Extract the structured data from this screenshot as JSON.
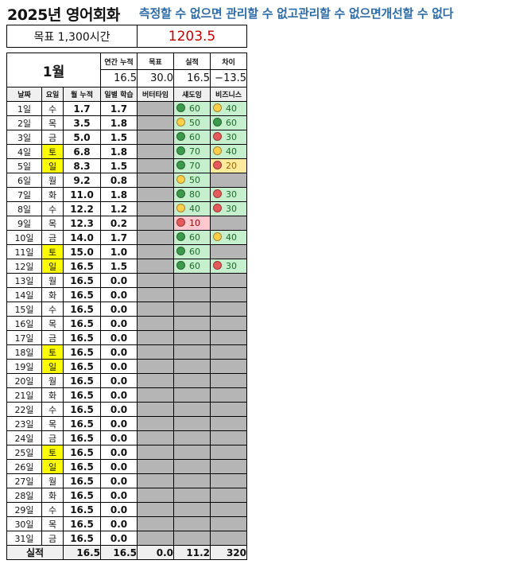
{
  "title": "2025년 영어회화",
  "motto": "측정할 수 없으면 관리할 수 없고관리할 수 없으면개선할 수 없다",
  "goal": {
    "label": "목표 1,300시간",
    "value": "1203.5"
  },
  "month": "1월",
  "summary": {
    "headers": [
      "연간 누적",
      "목표",
      "실적",
      "차이"
    ],
    "values": [
      "16.5",
      "30.0",
      "16.5",
      "−13.5"
    ]
  },
  "columns": [
    "날짜",
    "요일",
    "월 누적",
    "일별 학습",
    "버터타임",
    "섀도잉",
    "비즈니스"
  ],
  "colors": {
    "green_dot": "#3c9a4c",
    "yellow_dot": "#ffcf4a",
    "red_dot": "#e65a5a",
    "weekend": "#ffff00",
    "empty": "#b5b5b5"
  },
  "rows": [
    {
      "date": "1일",
      "day": "수",
      "cum": "1.7",
      "daily": "1.7",
      "shadow": {
        "v": "60",
        "s": "green"
      },
      "biz": {
        "v": "40",
        "s": "yellow"
      }
    },
    {
      "date": "2일",
      "day": "목",
      "cum": "3.5",
      "daily": "1.8",
      "shadow": {
        "v": "50",
        "s": "yellow"
      },
      "biz": {
        "v": "60",
        "s": "green"
      }
    },
    {
      "date": "3일",
      "day": "금",
      "cum": "5.0",
      "daily": "1.5",
      "shadow": {
        "v": "60",
        "s": "green"
      },
      "biz": {
        "v": "30",
        "s": "red"
      }
    },
    {
      "date": "4일",
      "day": "토",
      "cum": "6.8",
      "daily": "1.8",
      "shadow": {
        "v": "70",
        "s": "green"
      },
      "biz": {
        "v": "40",
        "s": "yellow"
      }
    },
    {
      "date": "5일",
      "day": "일",
      "cum": "8.3",
      "daily": "1.5",
      "shadow": {
        "v": "70",
        "s": "green"
      },
      "biz": {
        "v": "20",
        "s": "red",
        "bg": "y"
      }
    },
    {
      "date": "6일",
      "day": "월",
      "cum": "9.2",
      "daily": "0.8",
      "shadow": {
        "v": "50",
        "s": "yellow"
      },
      "biz": null
    },
    {
      "date": "7일",
      "day": "화",
      "cum": "11.0",
      "daily": "1.8",
      "shadow": {
        "v": "80",
        "s": "green"
      },
      "biz": {
        "v": "30",
        "s": "red"
      }
    },
    {
      "date": "8일",
      "day": "수",
      "cum": "12.2",
      "daily": "1.2",
      "shadow": {
        "v": "40",
        "s": "yellow"
      },
      "biz": {
        "v": "30",
        "s": "red"
      }
    },
    {
      "date": "9일",
      "day": "목",
      "cum": "12.3",
      "daily": "0.2",
      "shadow": {
        "v": "10",
        "s": "red",
        "bg": "p"
      },
      "biz": null
    },
    {
      "date": "10일",
      "day": "금",
      "cum": "14.0",
      "daily": "1.7",
      "shadow": {
        "v": "60",
        "s": "green"
      },
      "biz": {
        "v": "40",
        "s": "yellow"
      }
    },
    {
      "date": "11일",
      "day": "토",
      "cum": "15.0",
      "daily": "1.0",
      "shadow": {
        "v": "60",
        "s": "green"
      },
      "biz": null
    },
    {
      "date": "12일",
      "day": "일",
      "cum": "16.5",
      "daily": "1.5",
      "shadow": {
        "v": "60",
        "s": "green"
      },
      "biz": {
        "v": "30",
        "s": "red"
      }
    },
    {
      "date": "13일",
      "day": "월",
      "cum": "16.5",
      "daily": "0.0"
    },
    {
      "date": "14일",
      "day": "화",
      "cum": "16.5",
      "daily": "0.0"
    },
    {
      "date": "15일",
      "day": "수",
      "cum": "16.5",
      "daily": "0.0"
    },
    {
      "date": "16일",
      "day": "목",
      "cum": "16.5",
      "daily": "0.0"
    },
    {
      "date": "17일",
      "day": "금",
      "cum": "16.5",
      "daily": "0.0"
    },
    {
      "date": "18일",
      "day": "토",
      "cum": "16.5",
      "daily": "0.0"
    },
    {
      "date": "19일",
      "day": "일",
      "cum": "16.5",
      "daily": "0.0"
    },
    {
      "date": "20일",
      "day": "월",
      "cum": "16.5",
      "daily": "0.0"
    },
    {
      "date": "21일",
      "day": "화",
      "cum": "16.5",
      "daily": "0.0"
    },
    {
      "date": "22일",
      "day": "수",
      "cum": "16.5",
      "daily": "0.0"
    },
    {
      "date": "23일",
      "day": "목",
      "cum": "16.5",
      "daily": "0.0"
    },
    {
      "date": "24일",
      "day": "금",
      "cum": "16.5",
      "daily": "0.0"
    },
    {
      "date": "25일",
      "day": "토",
      "cum": "16.5",
      "daily": "0.0"
    },
    {
      "date": "26일",
      "day": "일",
      "cum": "16.5",
      "daily": "0.0"
    },
    {
      "date": "27일",
      "day": "월",
      "cum": "16.5",
      "daily": "0.0"
    },
    {
      "date": "28일",
      "day": "화",
      "cum": "16.5",
      "daily": "0.0"
    },
    {
      "date": "29일",
      "day": "수",
      "cum": "16.5",
      "daily": "0.0"
    },
    {
      "date": "30일",
      "day": "목",
      "cum": "16.5",
      "daily": "0.0"
    },
    {
      "date": "31일",
      "day": "금",
      "cum": "16.5",
      "daily": "0.0"
    }
  ],
  "footer": {
    "label": "실적",
    "cum": "16.5",
    "daily": "16.5",
    "butter": "0.0",
    "shadow": "11.2",
    "biz": "320"
  }
}
